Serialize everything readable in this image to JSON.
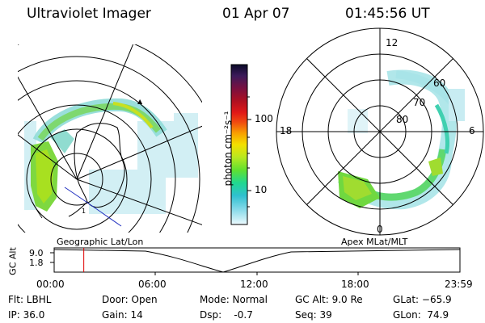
{
  "header": {
    "instrument": "Ultraviolet Imager",
    "date": "01 Apr 07",
    "time": "01:45:56 UT"
  },
  "colorbar": {
    "unit_label": "photon cm⁻²s⁻¹",
    "ticks": [
      "100",
      "10"
    ],
    "colors": [
      "#0a0a28",
      "#3c1a5a",
      "#7a1040",
      "#b01020",
      "#e01818",
      "#f04a10",
      "#f8a000",
      "#f4e000",
      "#b8e820",
      "#60e030",
      "#20d890",
      "#30c0d0",
      "#80d8e8",
      "#c0ecf4",
      "#eefaff"
    ]
  },
  "polar_plot": {
    "mlt_labels": [
      "12",
      "18",
      "6",
      "0"
    ],
    "lat_labels": [
      "60",
      "70",
      "80"
    ]
  },
  "timeline": {
    "left_title": "Geographic Lat/Lon",
    "right_title": "Apex MLat/MLT",
    "axis_title": "GC Alt",
    "y_ticks": [
      "9.0",
      "1.8"
    ],
    "x_ticks": [
      "00:00",
      "06:00",
      "12:00",
      "18:00",
      "23:59"
    ],
    "current_time_fraction": 0.073
  },
  "status": {
    "flt": "Flt: LBHL",
    "ip": "IP: 36.0",
    "door": "Door: Open",
    "gain": "Gain: 14",
    "mode": "Mode: Normal",
    "dsp": "Dsp:    -0.7",
    "gc_alt": "GC Alt: 9.0 Re",
    "seq": "Seq: 39",
    "glat": "GLat: −65.9",
    "glon": "GLon:  74.9"
  }
}
